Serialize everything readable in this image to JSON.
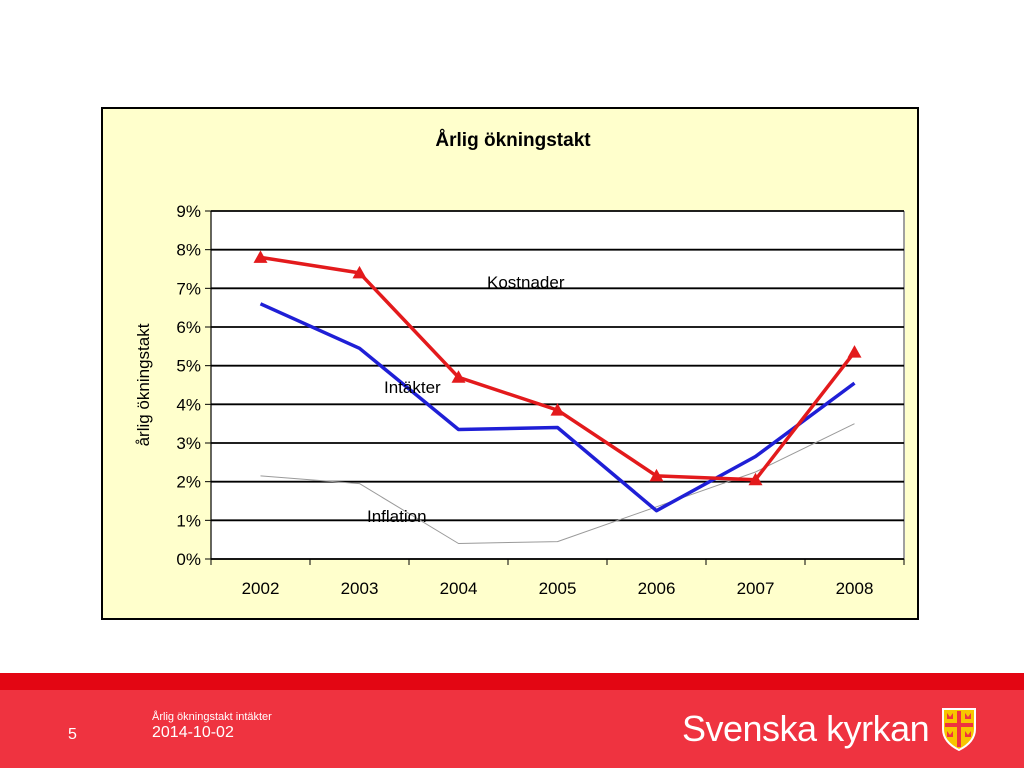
{
  "chart_data": {
    "type": "line",
    "title": "Årlig ökningstakt",
    "ylabel": "årlig ökningstakt",
    "xlabel": "",
    "categories": [
      "2002",
      "2003",
      "2004",
      "2005",
      "2006",
      "2007",
      "2008"
    ],
    "yticks": [
      "0%",
      "1%",
      "2%",
      "3%",
      "4%",
      "5%",
      "6%",
      "7%",
      "8%",
      "9%"
    ],
    "ylim": [
      0,
      9
    ],
    "grid": true,
    "series": [
      {
        "name": "Kostnader",
        "values": [
          7.8,
          7.4,
          4.7,
          3.85,
          2.15,
          2.05,
          5.35
        ],
        "color": "#e31a1c",
        "marker": "triangle"
      },
      {
        "name": "Intäkter",
        "values": [
          6.6,
          5.45,
          3.35,
          3.4,
          1.25,
          2.65,
          4.55
        ],
        "color": "#1f1fd6",
        "marker": "none"
      },
      {
        "name": "Inflation",
        "values": [
          2.15,
          1.95,
          0.4,
          0.45,
          1.35,
          2.25,
          3.5
        ],
        "color": "#9a9a9a",
        "marker": "none"
      }
    ],
    "annotations": [
      "Kostnader",
      "Intäkter",
      "Inflation"
    ],
    "plot_background": "#ffffff",
    "panel_background": "#ffffcc"
  },
  "footer": {
    "slide_number": "5",
    "subtitle": "Årlig ökningstakt intäkter",
    "date": "2014-10-02",
    "brand": "Svenska kyrkan",
    "logo_icon": "church-cross-shield-icon",
    "band_color": "#e30613",
    "background_color": "#ef3340"
  }
}
